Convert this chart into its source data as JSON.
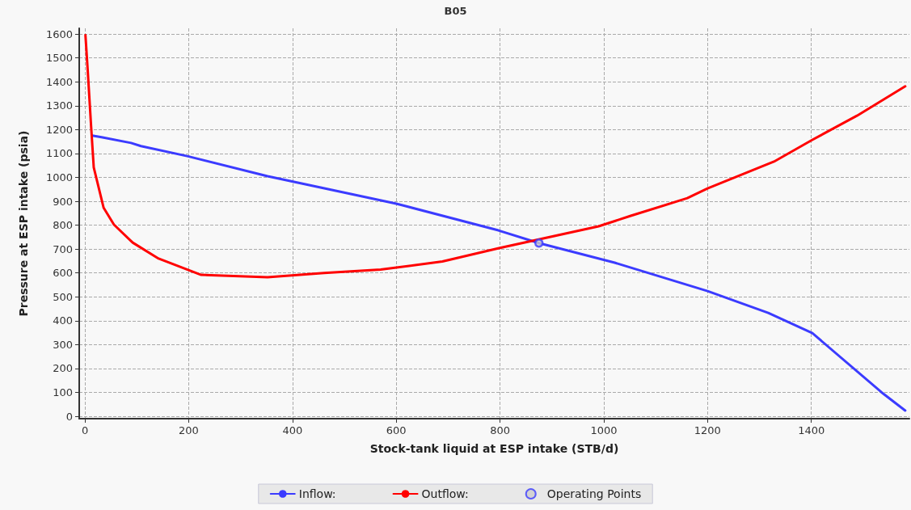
{
  "chart_data": {
    "type": "line",
    "title": "B05",
    "xlabel": "Stock-tank liquid at ESP intake (STB/d)",
    "ylabel": "Pressure at ESP intake (psia)",
    "xlim": [
      -11,
      1589
    ],
    "xticks": [
      0,
      200,
      400,
      600,
      800,
      1000,
      1200,
      1400
    ],
    "ylim": [
      -10,
      1624
    ],
    "yticks": [
      0,
      100,
      200,
      300,
      400,
      500,
      600,
      700,
      800,
      900,
      1000,
      1100,
      1200,
      1300,
      1400,
      1500,
      1600
    ],
    "grid": true,
    "legend": "bottom",
    "line_style": "solid",
    "marker": "none",
    "series": [
      {
        "name": "Inflow:",
        "color": "#3b3bff",
        "x": [
          14,
          32,
          89,
          108,
          197,
          352,
          456,
          600,
          797,
          875,
          1021,
          1200,
          1317,
          1402,
          1535,
          1581
        ],
        "values": [
          1175,
          1168,
          1144,
          1131,
          1089,
          1005,
          957,
          890,
          778,
          725,
          643,
          524,
          433,
          348,
          101,
          24
        ]
      },
      {
        "name": "Outflow:",
        "color": "#ff0000",
        "x": [
          1,
          5,
          12,
          17,
          36,
          56,
          92,
          142,
          224,
          352,
          461,
          570,
          689,
          798,
          990,
          1052,
          1161,
          1200,
          1328,
          1402,
          1488,
          1581
        ],
        "values": [
          1595,
          1461,
          1211,
          1042,
          873,
          802,
          727,
          660,
          592,
          582,
          600,
          614,
          648,
          704,
          795,
          839,
          913,
          954,
          1066,
          1157,
          1258,
          1381
        ]
      },
      {
        "name": "Operating Points",
        "type": "scatter",
        "marker": "circle",
        "color": "#3b3bff",
        "x": [
          875
        ],
        "values": [
          725
        ]
      }
    ]
  }
}
